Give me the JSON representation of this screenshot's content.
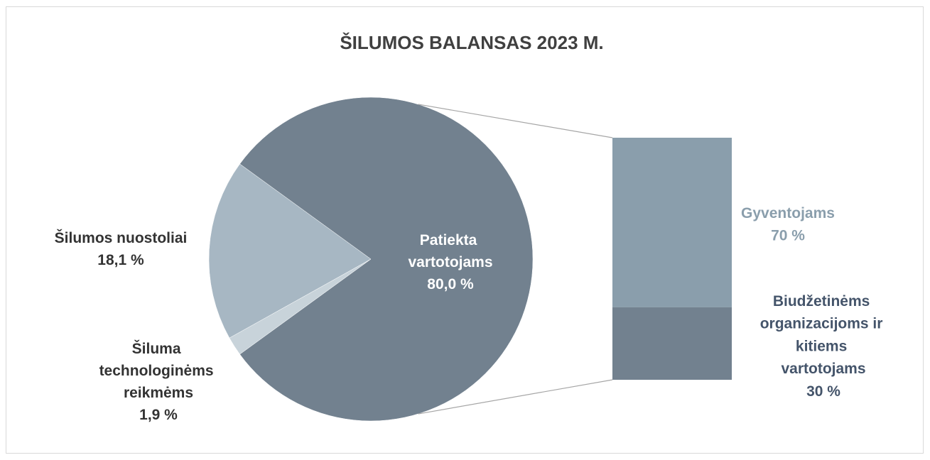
{
  "chart_data": {
    "type": "pie",
    "title": "ŠILUMOS BALANSAS 2023 M.",
    "categories": [
      "Patiekta vartotojams",
      "Šiluma technologinėms reikmėms",
      "Šilumos nuostoliai"
    ],
    "values": [
      80.0,
      1.9,
      18.1
    ],
    "value_labels": [
      "80,0 %",
      "1,9 %",
      "18,1 %"
    ],
    "colors": [
      "#72818f",
      "#c8d3da",
      "#a7b7c3"
    ],
    "breakdown": {
      "type": "bar",
      "categories": [
        "Gyventojams",
        "Biudžetinėms organizacijoms ir kitiems vartotojams"
      ],
      "values": [
        70,
        30
      ],
      "value_labels": [
        "70 %",
        "30 %"
      ],
      "colors": [
        "#8a9eac",
        "#72818f"
      ]
    }
  }
}
